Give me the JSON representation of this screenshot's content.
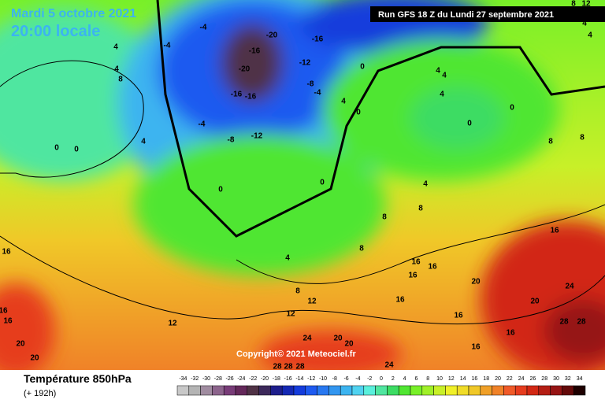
{
  "header": {
    "date": "Mardi 5 octobre 2021",
    "time": "20:00 locale",
    "run": "Run GFS 18 Z du Lundi 27 septembre 2021"
  },
  "map": {
    "labels": [
      "-4",
      "-4",
      "-20",
      "-16",
      "-20",
      "-16",
      "-16",
      "-16",
      "-12",
      "-8",
      "-4",
      "-4",
      "-8",
      "-12",
      "0",
      "4",
      "0",
      "4",
      "4",
      "4",
      "0",
      "0",
      "8",
      "8",
      "4",
      "0",
      "0",
      "0",
      "0",
      "4",
      "8",
      "8",
      "16",
      "16",
      "4",
      "8",
      "16",
      "16",
      "16",
      "20",
      "8",
      "12",
      "16",
      "16",
      "20",
      "24",
      "28",
      "28",
      "12",
      "12",
      "16",
      "16",
      "20",
      "20",
      "24",
      "20",
      "20",
      "16",
      "16",
      "24",
      "28",
      "28",
      "28",
      "4",
      "4",
      "8",
      "4",
      "4",
      "12",
      "8"
    ],
    "copyright": "Copyright© 2021 Meteociel.fr"
  },
  "legend": {
    "title": "Température 850hPa",
    "lead": "(+ 192h)",
    "ticks": [
      -34,
      -32,
      -30,
      -28,
      -26,
      -24,
      -22,
      -20,
      -18,
      -16,
      -14,
      -12,
      -10,
      -8,
      -6,
      -4,
      -2,
      0,
      2,
      4,
      6,
      8,
      10,
      12,
      14,
      16,
      18,
      20,
      22,
      24,
      26,
      28,
      30,
      32,
      34
    ],
    "colors": [
      "#c8c8c8",
      "#b4b4b4",
      "#a08ca0",
      "#8c648c",
      "#783c78",
      "#64285a",
      "#503246",
      "#3c285a",
      "#1e1e8c",
      "#1428b4",
      "#143cdc",
      "#1e5af0",
      "#2878f0",
      "#3296f0",
      "#3cb4f0",
      "#50d2f0",
      "#5af0dc",
      "#50e6a0",
      "#3cdc64",
      "#50e632",
      "#78f028",
      "#a0f028",
      "#c8f028",
      "#f0f028",
      "#f0dc28",
      "#f0c828",
      "#f0a028",
      "#f08228",
      "#f05a28",
      "#e63c1e",
      "#d22814",
      "#b41e14",
      "#961414",
      "#640a0a",
      "#1e0000"
    ]
  }
}
